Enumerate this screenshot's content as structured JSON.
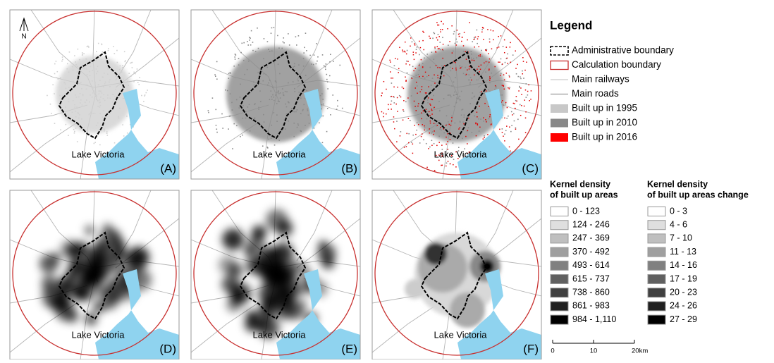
{
  "north_arrow": "N",
  "panels": [
    {
      "label": "(A)",
      "lake": "Lake Victoria"
    },
    {
      "label": "(B)",
      "lake": "Lake Victoria"
    },
    {
      "label": "(C)",
      "lake": "Lake Victoria"
    },
    {
      "label": "(D)",
      "lake": "Lake Victoria"
    },
    {
      "label": "(E)",
      "lake": "Lake Victoria"
    },
    {
      "label": "(F)",
      "lake": "Lake Victoria"
    }
  ],
  "legend": {
    "title": "Legend",
    "items": [
      "Administrative boundary",
      "Calculation boundary",
      "Main railways",
      "Main roads",
      "Built up in 1995",
      "Built up in 2010",
      "Built up in 2016"
    ]
  },
  "kernel_legends": [
    {
      "title": [
        "Kernel density",
        "of built up areas"
      ],
      "classes": [
        "0 - 123",
        "124 - 246",
        "247 - 369",
        "370 - 492",
        "493 - 614",
        "615 - 737",
        "738 - 860",
        "861 - 983",
        "984 - 1,110"
      ]
    },
    {
      "title": [
        "Kernel density",
        "of built up areas change"
      ],
      "classes": [
        "0 - 3",
        "4 - 6",
        "7 - 10",
        "11 - 13",
        "14 - 16",
        "17 - 19",
        "20 - 23",
        "24 - 26",
        "27 - 29"
      ]
    }
  ],
  "scale_bar": [
    "0",
    "10",
    "20km"
  ]
}
